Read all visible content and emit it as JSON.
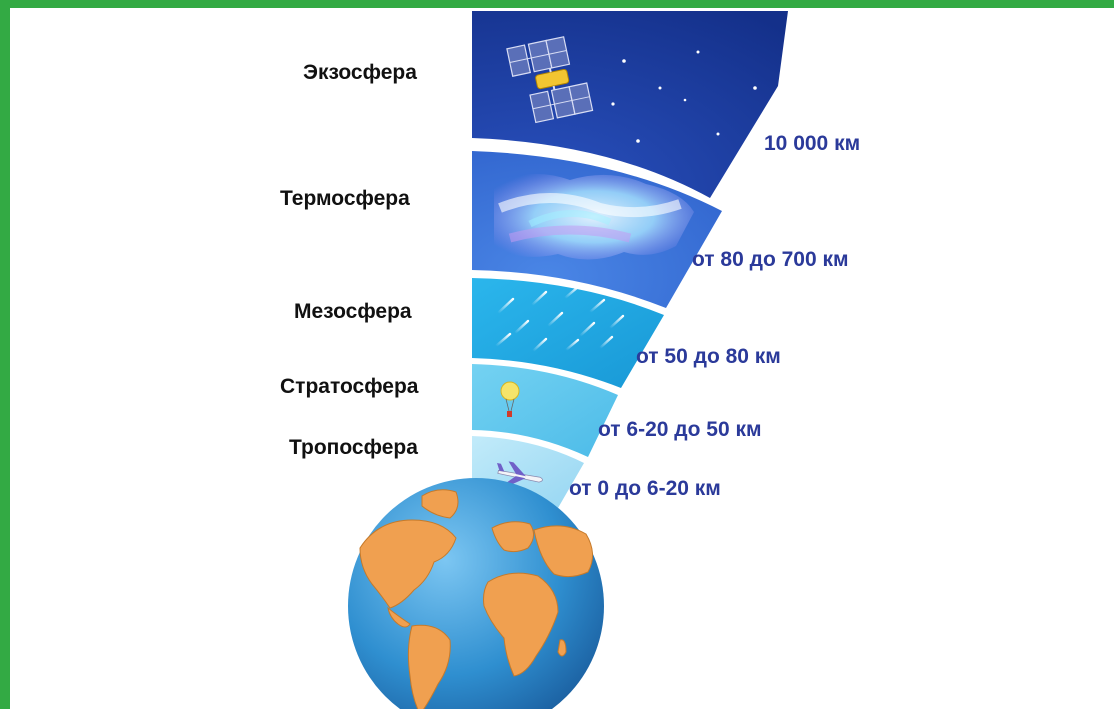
{
  "layers": [
    {
      "name": "Экзосфера",
      "altitude": "10 000 км"
    },
    {
      "name": "Термосфера",
      "altitude": "от 80 до 700 км"
    },
    {
      "name": "Мезосфера",
      "altitude": "от 50 до 80 км"
    },
    {
      "name": "Стратосфера",
      "altitude": "от 6-20 до 50 км"
    },
    {
      "name": "Тропосфера",
      "altitude": "от 0 до 6-20 км"
    }
  ],
  "colors": {
    "frame": "#33aa44",
    "exosphere": "#1a3a9c",
    "thermosphere": "#3a72d8",
    "mesosphere": "#22a8e2",
    "stratosphere": "#5ec8ee",
    "troposphere": "#a8e0f6",
    "ocean": "#2f8fd0",
    "land": "#f0a050",
    "altitude_text": "#2b3a9a"
  }
}
